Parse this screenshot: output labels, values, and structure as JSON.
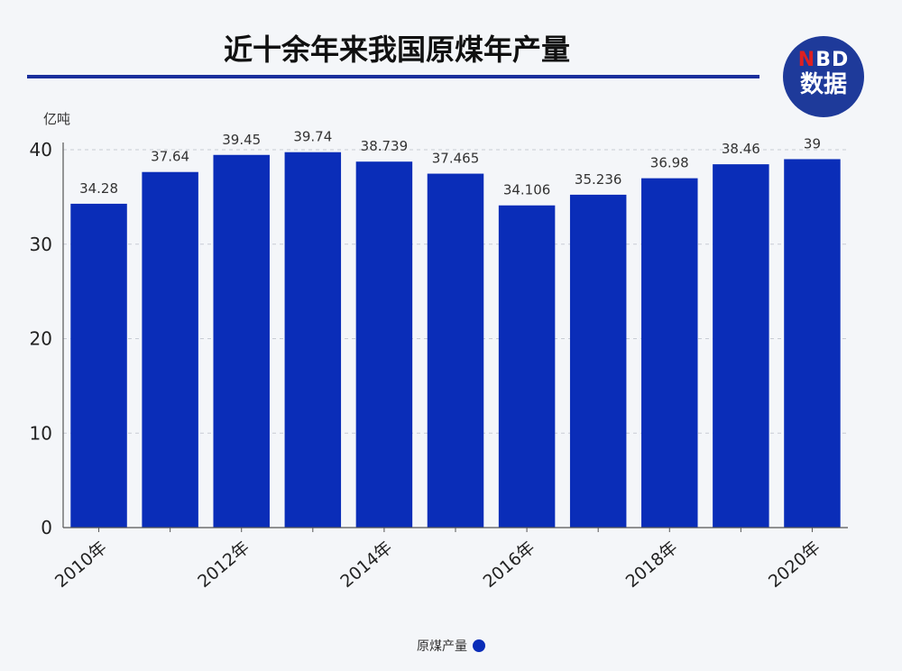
{
  "header": {
    "title": "近十余年来我国原煤年产量",
    "logo_line1_n": "N",
    "logo_line1_rest": "BD",
    "logo_line2": "数据"
  },
  "chart_data": {
    "type": "bar",
    "title": "近十余年来我国原煤年产量",
    "ylabel": "亿吨",
    "xlabel": "",
    "categories": [
      "2010年",
      "2011年",
      "2012年",
      "2013年",
      "2014年",
      "2015年",
      "2016年",
      "2017年",
      "2018年",
      "2019年",
      "2020年"
    ],
    "x_tick_labels": [
      "2010年",
      "",
      "2012年",
      "",
      "2014年",
      "",
      "2016年",
      "",
      "2018年",
      "",
      "2020年"
    ],
    "value_labels": [
      "34.28",
      "37.64",
      "39.45",
      "39.74",
      "38.739",
      "37.465",
      "34.106",
      "35.236",
      "36.98",
      "38.46",
      "39"
    ],
    "series": [
      {
        "name": "原煤产量",
        "values": [
          34.28,
          37.64,
          39.45,
          39.74,
          38.739,
          37.465,
          34.106,
          35.236,
          36.98,
          38.46,
          39
        ]
      }
    ],
    "ylim": [
      0,
      40
    ],
    "y_ticks": [
      "0",
      "10",
      "20",
      "30",
      "40"
    ],
    "grid": true,
    "legend_position": "bottom-center",
    "colors": {
      "bar": "#0a2db8",
      "grid": "#c8ccd4",
      "axis": "#555555"
    }
  },
  "legend": {
    "label": "原煤产量"
  }
}
